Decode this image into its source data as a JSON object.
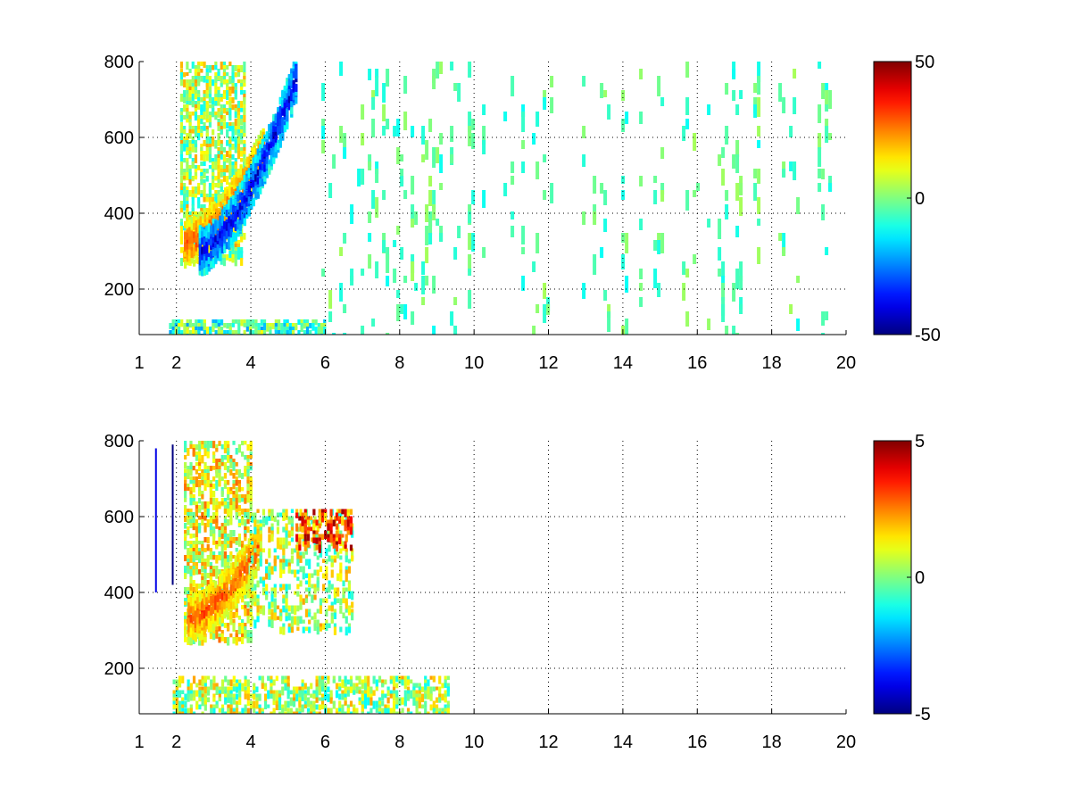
{
  "chart_data": [
    {
      "type": "heatmap",
      "title": "",
      "xlabel": "",
      "ylabel": "",
      "xlim": [
        1,
        20
      ],
      "ylim": [
        80,
        800
      ],
      "x_ticks": [
        "1",
        "2",
        "4",
        "6",
        "8",
        "10",
        "12",
        "14",
        "16",
        "18",
        "20"
      ],
      "x_tick_values": [
        1,
        2,
        4,
        6,
        8,
        10,
        12,
        14,
        16,
        18,
        20
      ],
      "y_ticks": [
        "200",
        "400",
        "600",
        "800"
      ],
      "y_tick_values": [
        200,
        400,
        600,
        800
      ],
      "grid": true,
      "colormap": "jet",
      "colorbar": {
        "range": [
          -50,
          50
        ],
        "ticks": [
          "50",
          "0",
          "-50"
        ],
        "tick_values": [
          50,
          0,
          -50
        ],
        "placement": "right"
      },
      "features": [
        {
          "kind": "blob",
          "x": [
            2.1,
            3.8
          ],
          "y": [
            280,
            800
          ],
          "value": 5,
          "density": 0.55
        },
        {
          "kind": "ridge",
          "label": "positive band",
          "x": [
            2.2,
            4.3
          ],
          "y_start": 320,
          "y_end": 560,
          "value": 30
        },
        {
          "kind": "ridge",
          "label": "negative band",
          "x": [
            2.6,
            5.2
          ],
          "y_start": 300,
          "y_end": 760,
          "value": -40
        },
        {
          "kind": "band",
          "x": [
            1.8,
            6.0
          ],
          "y": [
            80,
            120
          ],
          "value": -5,
          "density": 0.7
        },
        {
          "kind": "noise",
          "x": [
            5.8,
            20
          ],
          "y": [
            80,
            800
          ],
          "values": [
            -12,
            4
          ],
          "density": 0.12
        }
      ]
    },
    {
      "type": "heatmap",
      "title": "",
      "xlabel": "",
      "ylabel": "",
      "xlim": [
        1,
        20
      ],
      "ylim": [
        80,
        800
      ],
      "x_ticks": [
        "1",
        "2",
        "4",
        "6",
        "8",
        "10",
        "12",
        "14",
        "16",
        "18",
        "20"
      ],
      "x_tick_values": [
        1,
        2,
        4,
        6,
        8,
        10,
        12,
        14,
        16,
        18,
        20
      ],
      "y_ticks": [
        "200",
        "400",
        "600",
        "800"
      ],
      "y_tick_values": [
        200,
        400,
        600,
        800
      ],
      "grid": true,
      "colormap": "jet",
      "colorbar": {
        "range": [
          -5,
          5
        ],
        "ticks": [
          "5",
          "0",
          "-5"
        ],
        "tick_values": [
          5,
          0,
          -5
        ],
        "placement": "right"
      },
      "features": [
        {
          "kind": "blob",
          "x": [
            2.2,
            4.0
          ],
          "y": [
            280,
            800
          ],
          "value": 1,
          "density": 0.55
        },
        {
          "kind": "ridge",
          "label": "positive band",
          "x": [
            2.3,
            4.2
          ],
          "y_start": 330,
          "y_end": 520,
          "value": 3
        },
        {
          "kind": "blob",
          "x": [
            4.0,
            6.7
          ],
          "y": [
            300,
            620
          ],
          "value": 0.5,
          "density": 0.35
        },
        {
          "kind": "blob",
          "x": [
            5.2,
            6.7
          ],
          "y": [
            520,
            620
          ],
          "value": 3,
          "density": 0.45
        },
        {
          "kind": "band",
          "x": [
            1.9,
            9.3
          ],
          "y": [
            80,
            180
          ],
          "value": 0.5,
          "density": 0.5
        },
        {
          "kind": "line",
          "x": 1.45,
          "y": [
            400,
            780
          ],
          "value": -4
        },
        {
          "kind": "line",
          "x": 1.9,
          "y": [
            420,
            790
          ],
          "value": -5
        }
      ]
    }
  ]
}
